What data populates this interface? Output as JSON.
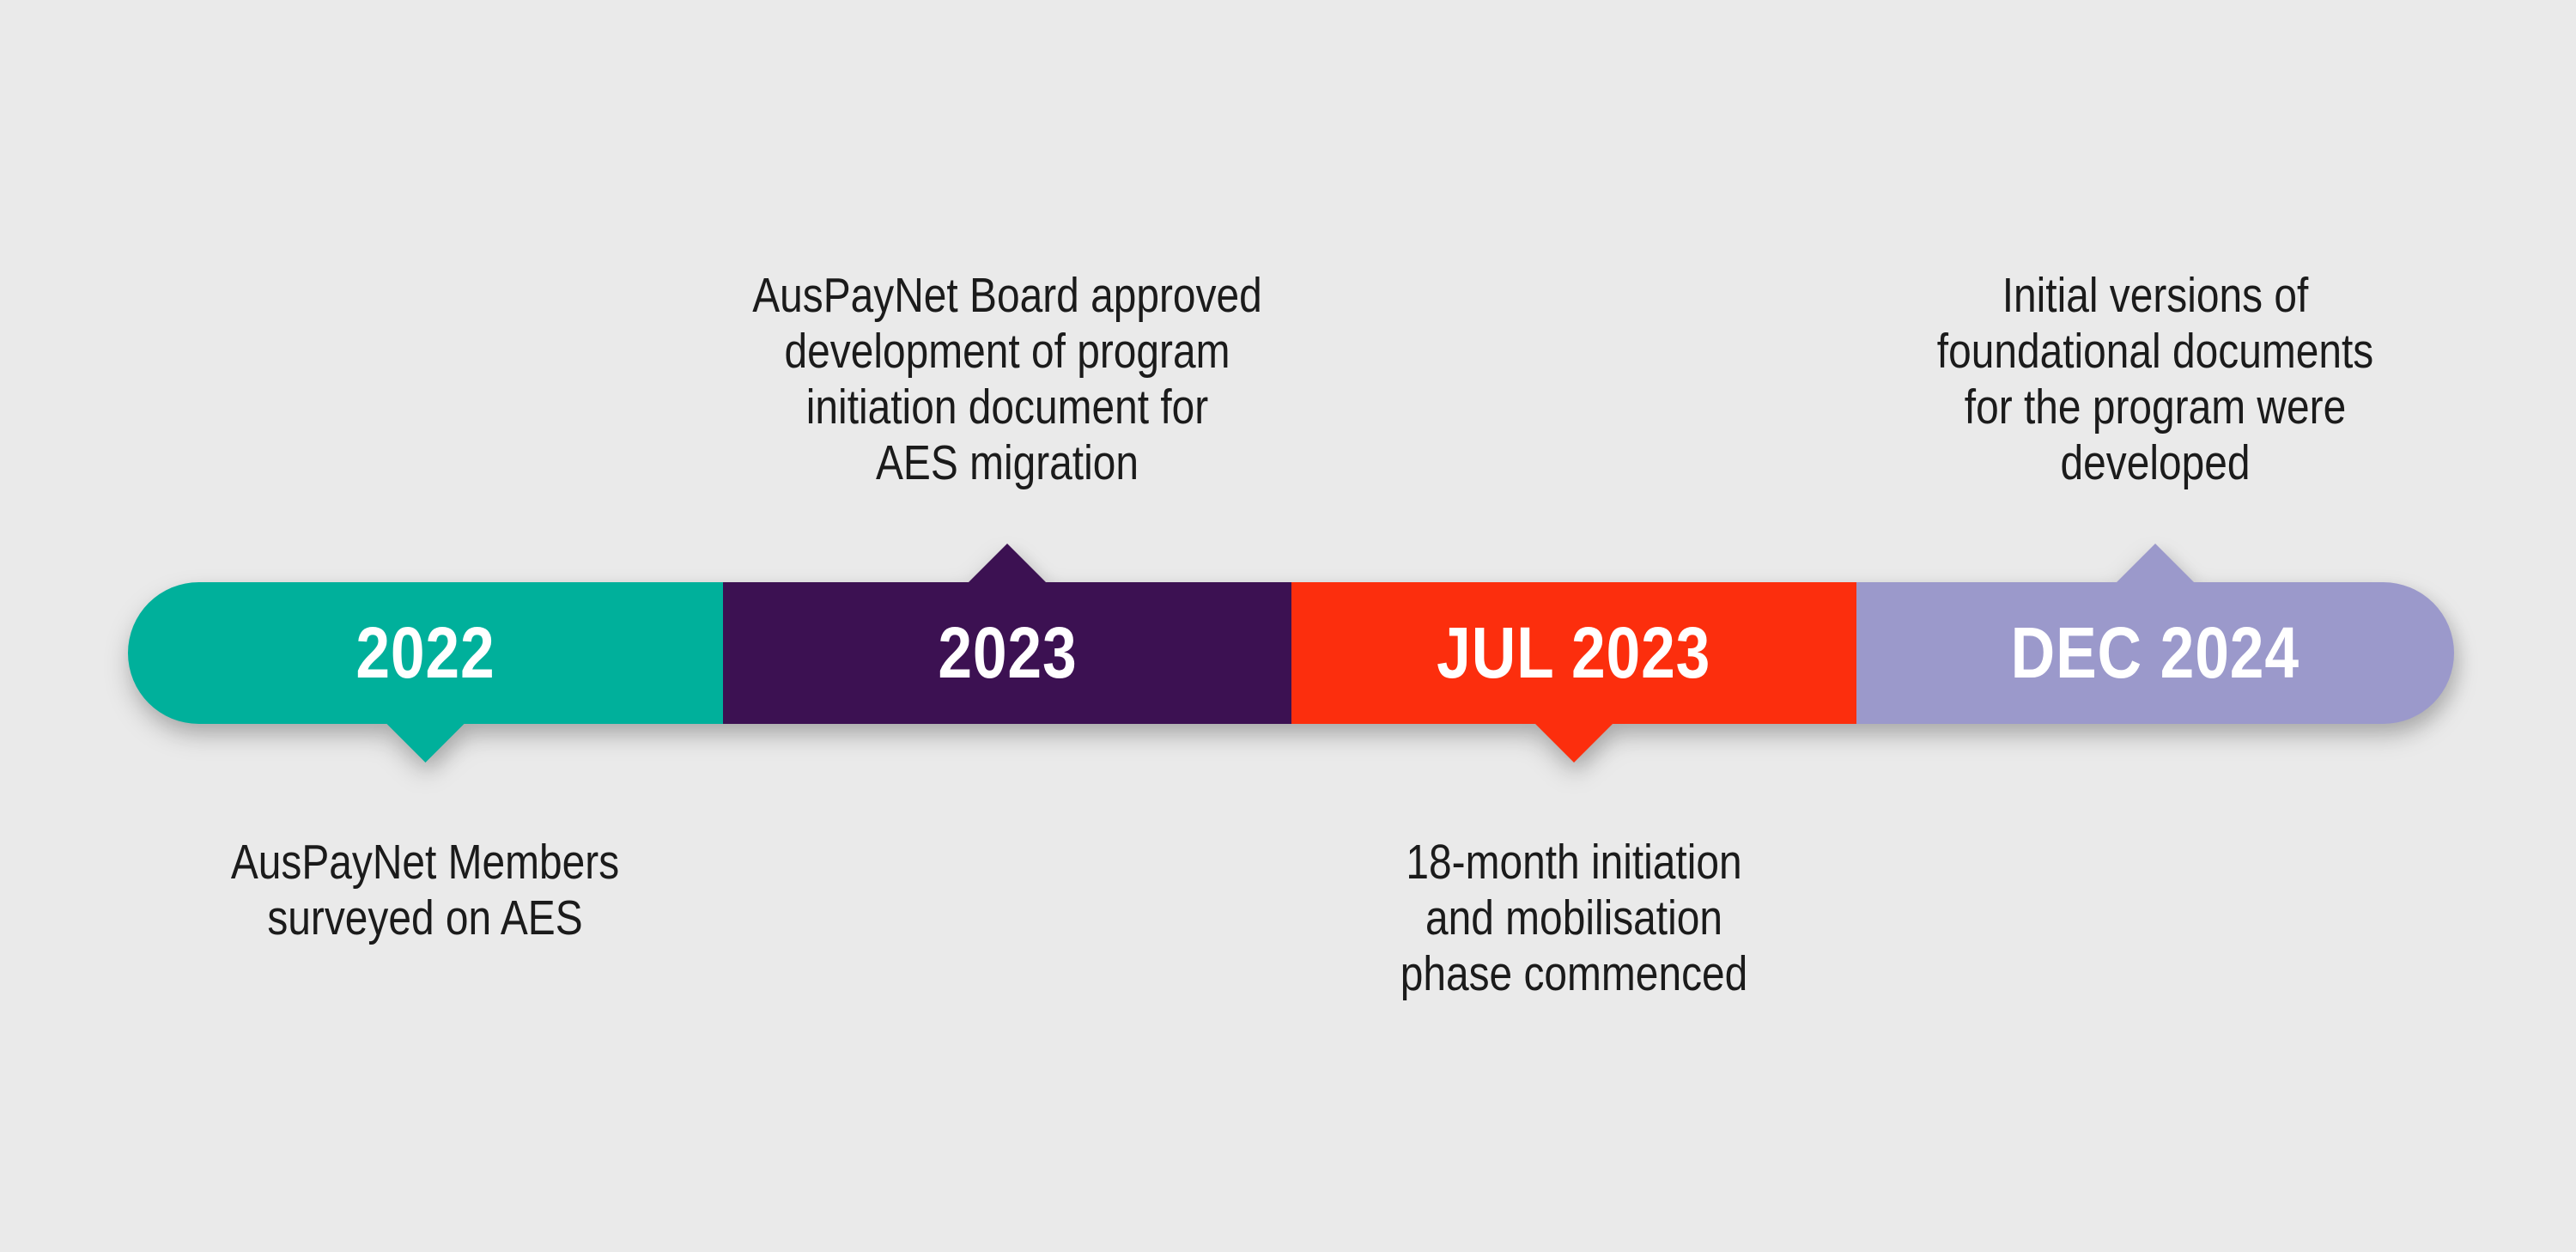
{
  "background_color": "#EAEAEA",
  "caption_text_color": "#1B1B1B",
  "label_text_color": "#FFFFFF",
  "timeline": {
    "segments": [
      {
        "label": "2022",
        "color": "#00B09B",
        "pointer": "down",
        "caption_position": "below",
        "caption_lines": [
          "AusPayNet Members",
          "surveyed on AES"
        ]
      },
      {
        "label": "2023",
        "color": "#3C1152",
        "pointer": "up",
        "caption_position": "above",
        "caption_lines": [
          "AusPayNet Board approved",
          "development of program",
          "initiation document for",
          "AES migration"
        ]
      },
      {
        "label": "JUL 2023",
        "color": "#FC2E0D",
        "pointer": "down",
        "caption_position": "below",
        "caption_lines": [
          "18-month initiation",
          "and mobilisation",
          "phase commenced"
        ]
      },
      {
        "label": "DEC 2024",
        "color": "#9B99CB",
        "pointer": "up",
        "caption_position": "above",
        "caption_lines": [
          "Initial versions of",
          "foundational documents",
          "for the program were",
          "developed"
        ]
      }
    ]
  }
}
